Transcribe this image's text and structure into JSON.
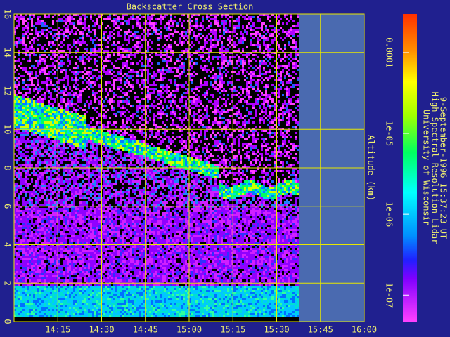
{
  "chart_data": {
    "type": "heatmap",
    "title": "Backscatter Cross Section",
    "y_label": "Altitude (km)",
    "annotation": [
      "University of Wisconsin",
      "High Spectral Resolution Lidar",
      "9-September-1996 15:37:23 UT"
    ],
    "xlim": [
      840,
      960
    ],
    "xticks": [
      {
        "value": 855,
        "label": "14:15"
      },
      {
        "value": 870,
        "label": "14:30"
      },
      {
        "value": 885,
        "label": "14:45"
      },
      {
        "value": 900,
        "label": "15:00"
      },
      {
        "value": 915,
        "label": "15:15"
      },
      {
        "value": 930,
        "label": "15:30"
      },
      {
        "value": 945,
        "label": "15:45"
      },
      {
        "value": 960,
        "label": "16:00"
      }
    ],
    "ylim": [
      0,
      16
    ],
    "yticks": [
      0,
      2,
      4,
      6,
      8,
      10,
      12,
      14,
      16
    ],
    "grid": true,
    "colorbar_log": true,
    "clim": [
      4.7e-08,
      0.0003
    ],
    "colorbar_ticks": [
      {
        "value": 0.0001,
        "label": "0.0001"
      },
      {
        "value": 1e-05,
        "label": "1e-05"
      },
      {
        "value": 1e-06,
        "label": "1e-06"
      },
      {
        "value": 1e-07,
        "label": "1e-07"
      }
    ]
  }
}
